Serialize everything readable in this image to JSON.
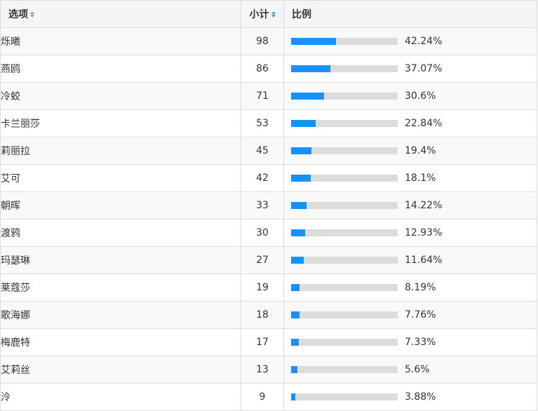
{
  "header": {
    "option_label": "选项",
    "count_label": "小计",
    "ratio_label": "比例"
  },
  "rows": [
    {
      "option": "烁曦",
      "count": "98",
      "percent": "42.24%",
      "fraction": 0.4224
    },
    {
      "option": "燕鸥",
      "count": "86",
      "percent": "37.07%",
      "fraction": 0.3707
    },
    {
      "option": "冷蛟",
      "count": "71",
      "percent": "30.6%",
      "fraction": 0.306
    },
    {
      "option": "卡兰丽莎",
      "count": "53",
      "percent": "22.84%",
      "fraction": 0.2284
    },
    {
      "option": "莉丽拉",
      "count": "45",
      "percent": "19.4%",
      "fraction": 0.194
    },
    {
      "option": "艾可",
      "count": "42",
      "percent": "18.1%",
      "fraction": 0.181
    },
    {
      "option": "朝晖",
      "count": "33",
      "percent": "14.22%",
      "fraction": 0.1422
    },
    {
      "option": "渡鸦",
      "count": "30",
      "percent": "12.93%",
      "fraction": 0.1293
    },
    {
      "option": "玛瑟琳",
      "count": "27",
      "percent": "11.64%",
      "fraction": 0.1164
    },
    {
      "option": "莱蔻莎",
      "count": "19",
      "percent": "8.19%",
      "fraction": 0.0819
    },
    {
      "option": "歌海娜",
      "count": "18",
      "percent": "7.76%",
      "fraction": 0.0776
    },
    {
      "option": "梅鹿特",
      "count": "17",
      "percent": "7.33%",
      "fraction": 0.0733
    },
    {
      "option": "艾莉丝",
      "count": "13",
      "percent": "5.6%",
      "fraction": 0.056
    },
    {
      "option": "泠",
      "count": "9",
      "percent": "3.88%",
      "fraction": 0.0388
    }
  ],
  "colors": {
    "bar_fill": "#1890ff",
    "bar_track": "#dcdcdc",
    "sort_active": "#4a9ad6"
  }
}
